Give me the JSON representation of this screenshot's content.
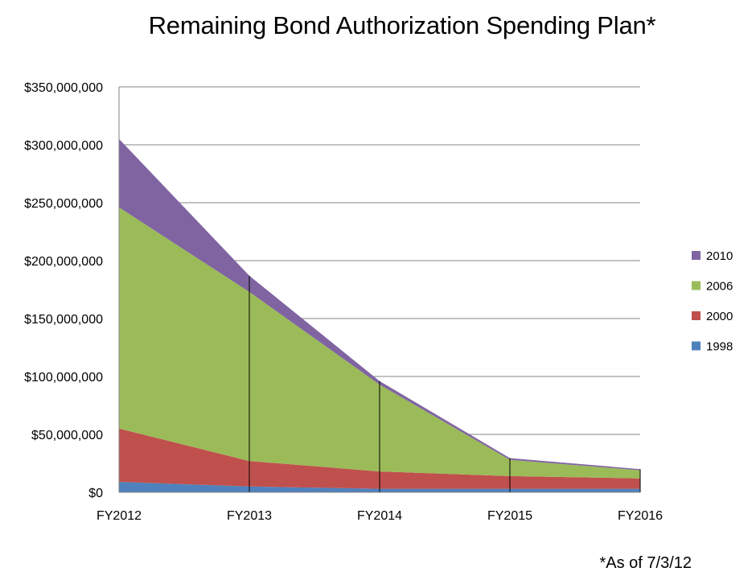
{
  "chart_data": {
    "type": "area",
    "stacked": true,
    "title": "Remaining Bond Authorization Spending Plan*",
    "xlabel": "",
    "ylabel": "",
    "categories": [
      "FY2012",
      "FY2013",
      "FY2014",
      "FY2015",
      "FY2016"
    ],
    "ylim": [
      0,
      350000000
    ],
    "yticks": [
      0,
      50000000,
      100000000,
      150000000,
      200000000,
      250000000,
      300000000,
      350000000
    ],
    "ytick_labels": [
      "$0",
      "$50,000,000",
      "$100,000,000",
      "$150,000,000",
      "$200,000,000",
      "$250,000,000",
      "$300,000,000",
      "$350,000,000"
    ],
    "grid": true,
    "legend_position": "right",
    "series": [
      {
        "name": "1998",
        "color": "#4F81BD",
        "values": [
          9000000,
          5000000,
          3000000,
          3000000,
          3000000
        ]
      },
      {
        "name": "2000",
        "color": "#C0504D",
        "values": [
          46000000,
          22000000,
          15000000,
          11000000,
          9000000
        ]
      },
      {
        "name": "2006",
        "color": "#9BBB59",
        "values": [
          191000000,
          146000000,
          75000000,
          14000000,
          7000000
        ]
      },
      {
        "name": "2010",
        "color": "#8064A2",
        "values": [
          59000000,
          14000000,
          3000000,
          1500000,
          1000000
        ]
      }
    ],
    "footnote": "*As of 7/3/12"
  }
}
